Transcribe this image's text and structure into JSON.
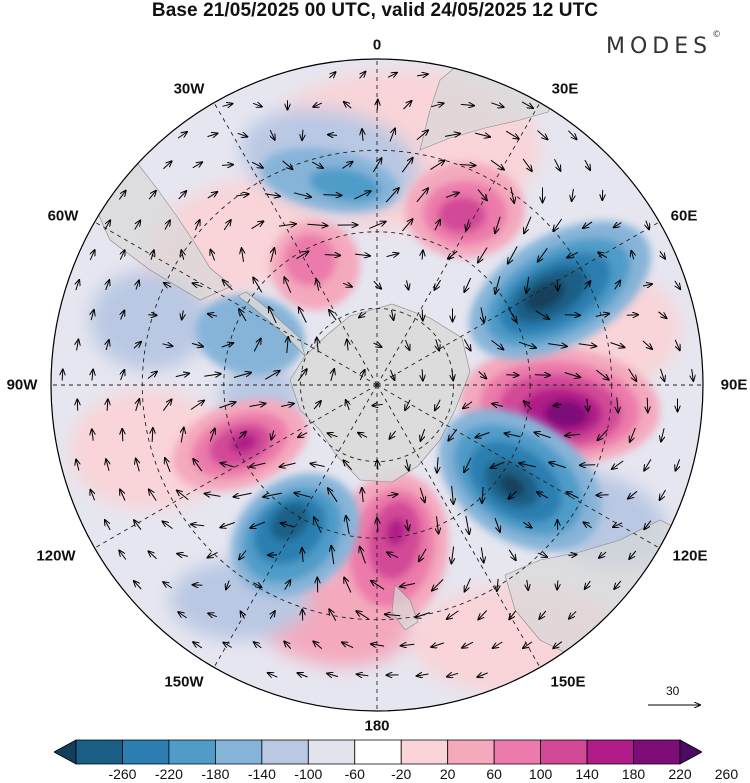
{
  "title": "Base 21/05/2025 00 UTC, valid 24/05/2025 12 UTC",
  "brand": "MODES",
  "brand_mark": "©",
  "longitude_labels": [
    "0",
    "30E",
    "60E",
    "90E",
    "120E",
    "150E",
    "180",
    "150W",
    "120W",
    "90W",
    "60W",
    "30W"
  ],
  "reference_vector": "30",
  "colorbar": {
    "labels": [
      "-260",
      "-220",
      "-180",
      "-140",
      "-100",
      "-60",
      "-20",
      "20",
      "60",
      "100",
      "140",
      "180",
      "220",
      "260"
    ],
    "colors": [
      "#123f5c",
      "#1a5e86",
      "#2c7fb0",
      "#4f9cc9",
      "#86b4d8",
      "#b9c8e3",
      "#e3e3ee",
      "#ffffff",
      "#f9d4d8",
      "#f4a9bd",
      "#ec7aaa",
      "#d24997",
      "#b11c88",
      "#7d0e79",
      "#4b0a63"
    ]
  },
  "colors": {
    "land": "#d9d9d9",
    "grid": "#222222",
    "vectors": "#000000"
  }
}
